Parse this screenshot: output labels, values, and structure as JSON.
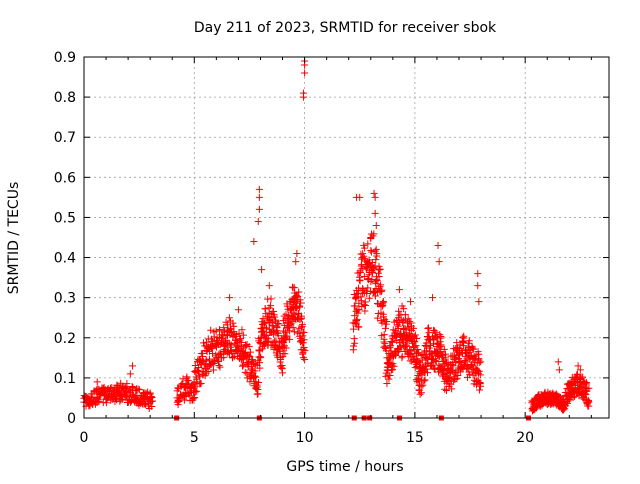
{
  "chart_data": {
    "type": "scatter",
    "title": "Day 211 of 2023, SRMTID for receiver sbok",
    "xlabel": "GPS time / hours",
    "ylabel": "SRMTID / TECUs",
    "xlim": [
      0,
      23.8
    ],
    "ylim": [
      0,
      0.9
    ],
    "xticks": [
      0,
      5,
      10,
      15,
      20
    ],
    "xtick_labels": [
      "0",
      "5",
      "10",
      "15",
      "20"
    ],
    "yticks": [
      0,
      0.1,
      0.2,
      0.3,
      0.4,
      0.5,
      0.6,
      0.7,
      0.8,
      0.9
    ],
    "ytick_labels": [
      "0",
      "0.1",
      "0.2",
      "0.3",
      "0.4",
      "0.5",
      "0.6",
      "0.7",
      "0.8",
      "0.9"
    ],
    "grid": true,
    "marker": "+",
    "color": "#ff0000",
    "square_markers": [
      4.2,
      7.95,
      12.25,
      12.7,
      12.95,
      14.3,
      16.2,
      20.15
    ],
    "clusters": [
      {
        "x_start": 0.0,
        "x_end": 3.1,
        "base": 0.04,
        "peak": 0.07,
        "spread": 0.02,
        "count": 210,
        "spikes": [
          [
            2.2,
            0.13
          ],
          [
            2.1,
            0.11
          ],
          [
            0.6,
            0.09
          ]
        ]
      },
      {
        "x_start": 4.2,
        "x_end": 5.0,
        "base": 0.05,
        "peak": 0.08,
        "spread": 0.025,
        "count": 60,
        "spikes": []
      },
      {
        "x_start": 5.0,
        "x_end": 7.9,
        "base": 0.09,
        "peak": 0.22,
        "spread": 0.04,
        "count": 260,
        "spikes": [
          [
            6.6,
            0.3
          ],
          [
            7.0,
            0.27
          ],
          [
            7.7,
            0.44
          ]
        ]
      },
      {
        "x_start": 7.9,
        "x_end": 9.0,
        "base": 0.15,
        "peak": 0.26,
        "spread": 0.045,
        "count": 120,
        "spikes": [
          [
            7.95,
            0.57
          ],
          [
            7.95,
            0.55
          ],
          [
            7.95,
            0.52
          ],
          [
            7.9,
            0.49
          ],
          [
            8.05,
            0.37
          ],
          [
            8.4,
            0.33
          ]
        ]
      },
      {
        "x_start": 9.0,
        "x_end": 10.0,
        "base": 0.18,
        "peak": 0.3,
        "spread": 0.05,
        "count": 120,
        "spikes": [
          [
            9.65,
            0.41
          ],
          [
            9.6,
            0.39
          ],
          [
            10.0,
            0.89
          ],
          [
            10.0,
            0.88
          ],
          [
            10.0,
            0.86
          ],
          [
            9.95,
            0.81
          ],
          [
            9.95,
            0.8
          ]
        ]
      },
      {
        "x_start": 12.2,
        "x_end": 13.7,
        "base": 0.22,
        "peak": 0.42,
        "spread": 0.07,
        "count": 160,
        "spikes": [
          [
            12.35,
            0.55
          ],
          [
            12.5,
            0.55
          ],
          [
            13.15,
            0.56
          ],
          [
            13.2,
            0.55
          ],
          [
            13.2,
            0.51
          ],
          [
            13.25,
            0.48
          ],
          [
            13.0,
            0.45
          ]
        ]
      },
      {
        "x_start": 13.7,
        "x_end": 15.2,
        "base": 0.12,
        "peak": 0.24,
        "spread": 0.05,
        "count": 180,
        "spikes": [
          [
            14.3,
            0.32
          ],
          [
            14.8,
            0.29
          ]
        ]
      },
      {
        "x_start": 15.2,
        "x_end": 16.5,
        "base": 0.09,
        "peak": 0.2,
        "spread": 0.05,
        "count": 150,
        "spikes": [
          [
            16.05,
            0.43
          ],
          [
            16.1,
            0.39
          ],
          [
            15.8,
            0.3
          ]
        ]
      },
      {
        "x_start": 16.5,
        "x_end": 18.0,
        "base": 0.1,
        "peak": 0.17,
        "spread": 0.045,
        "count": 150,
        "spikes": [
          [
            17.85,
            0.36
          ],
          [
            17.85,
            0.33
          ],
          [
            17.9,
            0.29
          ]
        ]
      },
      {
        "x_start": 20.3,
        "x_end": 21.8,
        "base": 0.03,
        "peak": 0.055,
        "spread": 0.015,
        "count": 140,
        "spikes": [
          [
            21.5,
            0.14
          ],
          [
            21.55,
            0.12
          ]
        ]
      },
      {
        "x_start": 21.8,
        "x_end": 22.9,
        "base": 0.05,
        "peak": 0.09,
        "spread": 0.025,
        "count": 110,
        "spikes": [
          [
            22.4,
            0.13
          ],
          [
            22.5,
            0.12
          ]
        ]
      }
    ]
  }
}
